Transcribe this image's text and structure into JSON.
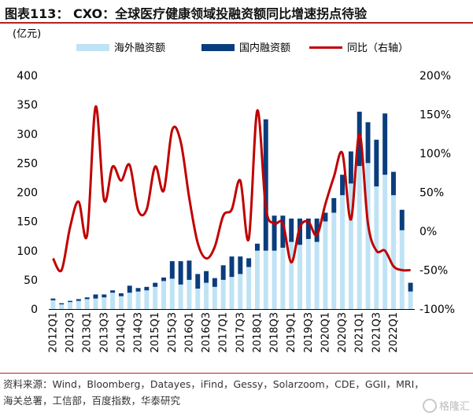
{
  "figure_title": "图表113： CXO：全球医疗健康领域投融资额同比增速拐点待验",
  "source_text": "资料来源：Wind，Bloomberg，Datayes，iFind，Gessy，Solarzoom，CDE，GGII，MRI，海关总署，工信部，百度指数，华泰研究",
  "watermark": "格隆汇",
  "colors": {
    "overseas": "#bfe3f5",
    "domestic": "#0a3d7c",
    "yoy": "#c00000",
    "title_rule": "#b22222"
  },
  "chart_data": {
    "type": "bar",
    "stacked": true,
    "unit_label": "(亿元)",
    "left_axis": {
      "min": 0,
      "max": 400,
      "ticks": [
        0,
        50,
        100,
        150,
        200,
        250,
        300,
        350,
        400
      ]
    },
    "right_axis": {
      "min": -100,
      "max": 200,
      "ticks": [
        "-100%",
        "-50%",
        "0%",
        "50%",
        "100%",
        "150%",
        "200%"
      ],
      "tick_values": [
        -100,
        -50,
        0,
        50,
        100,
        150,
        200
      ]
    },
    "legend": {
      "position": "top",
      "items": [
        "海外融资额",
        "国内融资额",
        "同比（右轴）"
      ]
    },
    "categories": [
      "2012Q1",
      "2012Q2",
      "2012Q3",
      "2012Q4",
      "2013Q1",
      "2013Q2",
      "2013Q3",
      "2013Q4",
      "2014Q1",
      "2014Q2",
      "2014Q3",
      "2014Q4",
      "2015Q1",
      "2015Q2",
      "2015Q3",
      "2015Q4",
      "2016Q1",
      "2016Q2",
      "2016Q3",
      "2016Q4",
      "2017Q1",
      "2017Q2",
      "2017Q3",
      "2017Q4",
      "2018Q1",
      "2018Q2",
      "2018Q3",
      "2018Q4",
      "2019Q1",
      "2019Q2",
      "2019Q3",
      "2019Q4",
      "2020Q1",
      "2020Q2",
      "2020Q3",
      "2020Q4",
      "2021Q1",
      "2021Q2",
      "2021Q3",
      "2021Q4",
      "2022Q1",
      "2022Q2",
      "2022Q3"
    ],
    "x_tick_labels": [
      "2012Q1",
      "2012Q3",
      "2013Q1",
      "2013Q3",
      "2014Q1",
      "2014Q3",
      "2015Q1",
      "2015Q3",
      "2016Q1",
      "2016Q3",
      "2017Q1",
      "2017Q3",
      "2018Q1",
      "2018Q3",
      "2019Q1",
      "2019Q3",
      "2020Q1",
      "2020Q3",
      "2021Q1",
      "2021Q3",
      "2022Q1"
    ],
    "series": [
      {
        "name": "海外融资额",
        "axis": "left",
        "kind": "bar",
        "values": [
          15,
          8,
          12,
          14,
          17,
          18,
          20,
          28,
          22,
          28,
          30,
          32,
          38,
          48,
          52,
          42,
          50,
          35,
          45,
          38,
          50,
          55,
          60,
          72,
          100,
          100,
          100,
          105,
          115,
          110,
          120,
          115,
          150,
          165,
          195,
          215,
          245,
          250,
          210,
          230,
          195,
          135,
          30
        ]
      },
      {
        "name": "国内融资额",
        "axis": "left",
        "kind": "bar",
        "values": [
          3,
          2,
          2,
          3,
          3,
          7,
          5,
          4,
          5,
          12,
          6,
          6,
          7,
          6,
          30,
          40,
          33,
          25,
          20,
          15,
          25,
          35,
          30,
          15,
          12,
          225,
          60,
          55,
          40,
          45,
          35,
          40,
          15,
          25,
          35,
          55,
          93,
          70,
          80,
          105,
          40,
          35,
          15
        ]
      },
      {
        "name": "同比（右轴）",
        "axis": "right",
        "kind": "line",
        "values": [
          -35,
          -50,
          5,
          38,
          -5,
          160,
          40,
          83,
          65,
          85,
          27,
          28,
          83,
          52,
          130,
          115,
          43,
          -15,
          -35,
          -20,
          20,
          28,
          65,
          -10,
          155,
          30,
          10,
          10,
          -40,
          5,
          12,
          -5,
          35,
          70,
          100,
          15,
          125,
          10,
          -25,
          -25,
          -45,
          -50,
          -50
        ]
      }
    ]
  }
}
